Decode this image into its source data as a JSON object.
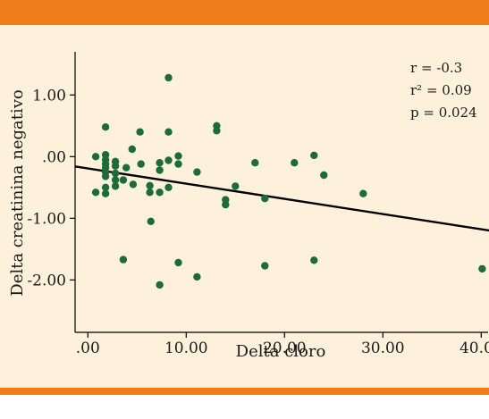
{
  "colors": {
    "band": "#ee7d1a",
    "background": "#fdf1dc",
    "points": "#1e6b3a",
    "line": "#000000"
  },
  "chart_data": {
    "type": "scatter",
    "xlabel": "Delta cloro",
    "ylabel": "Delta creatinina negativo",
    "x_ticks": [
      ".00",
      "10.00",
      "20.00",
      "30.00",
      "40.00"
    ],
    "y_ticks": [
      "1.00",
      ".00",
      "-1.00",
      "-2.00"
    ],
    "xlim": [
      -1.3,
      40.7
    ],
    "ylim": [
      -2.85,
      1.7
    ],
    "stats": [
      "r = -0.3",
      "r² = 0.09",
      "p = 0.024"
    ],
    "regression_line": {
      "x": [
        -1.3,
        41.3
      ],
      "y": [
        -0.16,
        -1.21
      ]
    },
    "points": [
      [
        0.8,
        0.0
      ],
      [
        1.8,
        0.03
      ],
      [
        1.8,
        -0.05
      ],
      [
        1.8,
        -0.12
      ],
      [
        1.8,
        -0.18
      ],
      [
        1.8,
        -0.25
      ],
      [
        1.8,
        -0.32
      ],
      [
        1.8,
        -0.5
      ],
      [
        1.8,
        -0.6
      ],
      [
        1.8,
        0.48
      ],
      [
        0.8,
        -0.58
      ],
      [
        2.8,
        -0.08
      ],
      [
        2.8,
        -0.15
      ],
      [
        2.8,
        -0.27
      ],
      [
        2.8,
        -0.38
      ],
      [
        2.8,
        -0.48
      ],
      [
        3.6,
        -0.38
      ],
      [
        3.9,
        -0.18
      ],
      [
        4.6,
        -0.45
      ],
      [
        4.5,
        0.12
      ],
      [
        5.3,
        0.4
      ],
      [
        5.4,
        -0.12
      ],
      [
        6.3,
        -0.47
      ],
      [
        6.3,
        -0.58
      ],
      [
        7.3,
        -0.1
      ],
      [
        7.3,
        -0.22
      ],
      [
        7.3,
        -0.58
      ],
      [
        8.2,
        -0.06
      ],
      [
        8.2,
        -0.5
      ],
      [
        8.2,
        0.4
      ],
      [
        8.2,
        1.28
      ],
      [
        9.2,
        0.01
      ],
      [
        9.2,
        -0.12
      ],
      [
        11.1,
        -0.25
      ],
      [
        13.1,
        0.5
      ],
      [
        13.1,
        0.42
      ],
      [
        14.0,
        -0.7
      ],
      [
        14.0,
        -0.78
      ],
      [
        15.0,
        -0.48
      ],
      [
        17.0,
        -0.1
      ],
      [
        18.0,
        -0.68
      ],
      [
        21.0,
        -0.1
      ],
      [
        23.0,
        0.02
      ],
      [
        24.0,
        -0.3
      ],
      [
        28.0,
        -0.6
      ],
      [
        3.6,
        -1.67
      ],
      [
        6.4,
        -1.05
      ],
      [
        7.3,
        -2.08
      ],
      [
        9.2,
        -1.72
      ],
      [
        11.1,
        -1.95
      ],
      [
        18.0,
        -1.77
      ],
      [
        23.0,
        -1.68
      ],
      [
        40.1,
        -1.82
      ]
    ]
  }
}
